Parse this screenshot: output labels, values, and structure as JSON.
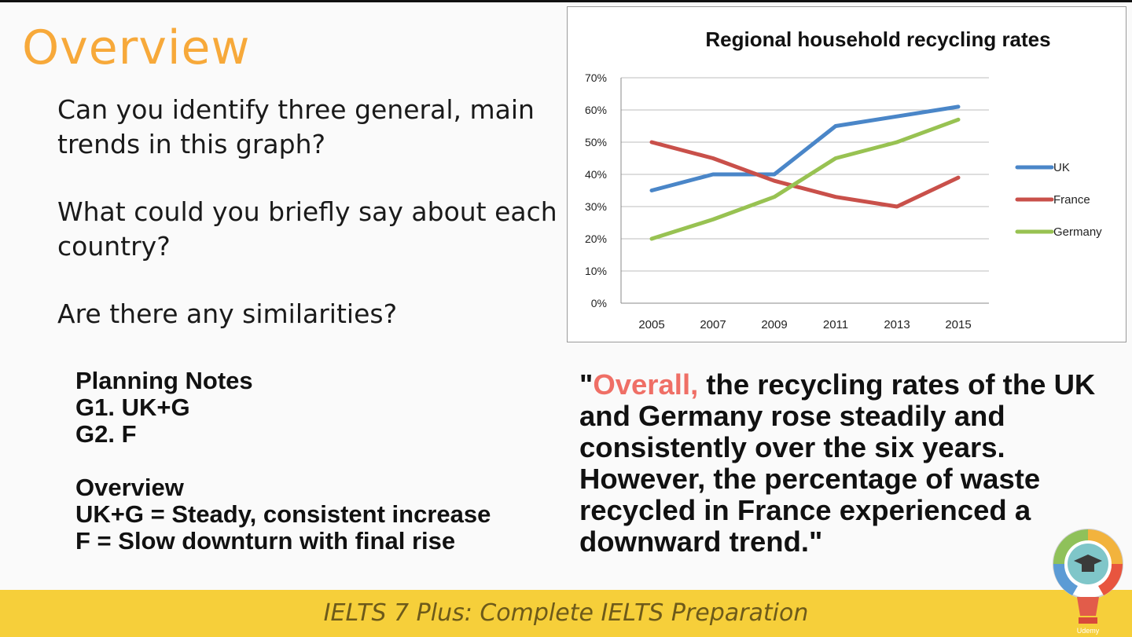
{
  "slide": {
    "title": "Overview",
    "questions": [
      "Can you identify three general, main trends in this graph?",
      "What could you briefly say about each country?",
      "Are there any similarities?"
    ],
    "notes": {
      "heading": "Planning Notes",
      "groups": [
        "G1. UK+G",
        "G2. F"
      ],
      "overview_heading": "Overview",
      "overview_lines": [
        "UK+G = Steady, consistent increase",
        "F = Slow downturn with final rise"
      ]
    },
    "quote": {
      "open_mark": "\"",
      "highlight": "Overall,",
      "body": " the recycling rates of the UK and Germany rose steadily and consistently over the six years. However, the percentage of waste recycled in France experienced a downward trend.\""
    },
    "footer": "IELTS 7 Plus: Complete IELTS Preparation",
    "logo_text": "Udemy"
  },
  "colors": {
    "title": "#f7a93a",
    "highlight": "#ef6f66",
    "footer_bg": "#f6cf3a",
    "uk": "#4a86c8",
    "france": "#c9504a",
    "germany": "#98c252"
  },
  "chart_data": {
    "type": "line",
    "title": "Regional household recycling rates",
    "categories": [
      "2005",
      "2007",
      "2009",
      "2011",
      "2013",
      "2015"
    ],
    "series": [
      {
        "name": "UK",
        "values": [
          35,
          40,
          40,
          55,
          58,
          61
        ],
        "color": "#4a86c8"
      },
      {
        "name": "France",
        "values": [
          50,
          45,
          38,
          33,
          30,
          39
        ],
        "color": "#c9504a"
      },
      {
        "name": "Germany",
        "values": [
          20,
          26,
          33,
          45,
          50,
          57
        ],
        "color": "#98c252"
      }
    ],
    "ylim": [
      0,
      70
    ],
    "yticks": [
      "0%",
      "10%",
      "20%",
      "30%",
      "40%",
      "50%",
      "60%",
      "70%"
    ],
    "y_unit": "%",
    "grid": true,
    "legend": "right"
  }
}
